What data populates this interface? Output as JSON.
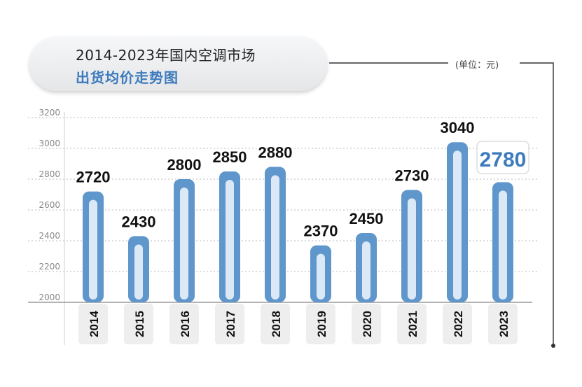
{
  "header": {
    "title_line1": "2014-2023年国内空调市场",
    "title_line2": "出货均价走势图",
    "unit": "(单位：元)"
  },
  "colors": {
    "bar": "#5f96cc",
    "bar_inner": "#dbe8f5",
    "title_accent": "#3e7bbd",
    "highlight_text": "#3e7bbd",
    "grid": "#c8c8c8"
  },
  "chart_data": {
    "type": "bar",
    "title": "2014-2023年国内空调市场出货均价走势图",
    "unit": "(单位：元)",
    "categories": [
      "2014",
      "2015",
      "2016",
      "2017",
      "2018",
      "2019",
      "2020",
      "2021",
      "2022",
      "2023"
    ],
    "values": [
      2720,
      2430,
      2800,
      2850,
      2880,
      2370,
      2450,
      2730,
      3040,
      2780
    ],
    "data_labels": [
      "2720",
      "2430",
      "2800",
      "2850",
      "2880",
      "2370",
      "2450",
      "2730",
      "3040",
      "2780"
    ],
    "highlighted_label": "2780",
    "y_ticks": [
      "2000",
      "2200",
      "2400",
      "2600",
      "2800",
      "3000",
      "3200"
    ],
    "ylim": [
      2000,
      3200
    ],
    "grid": true,
    "legend": "none"
  }
}
